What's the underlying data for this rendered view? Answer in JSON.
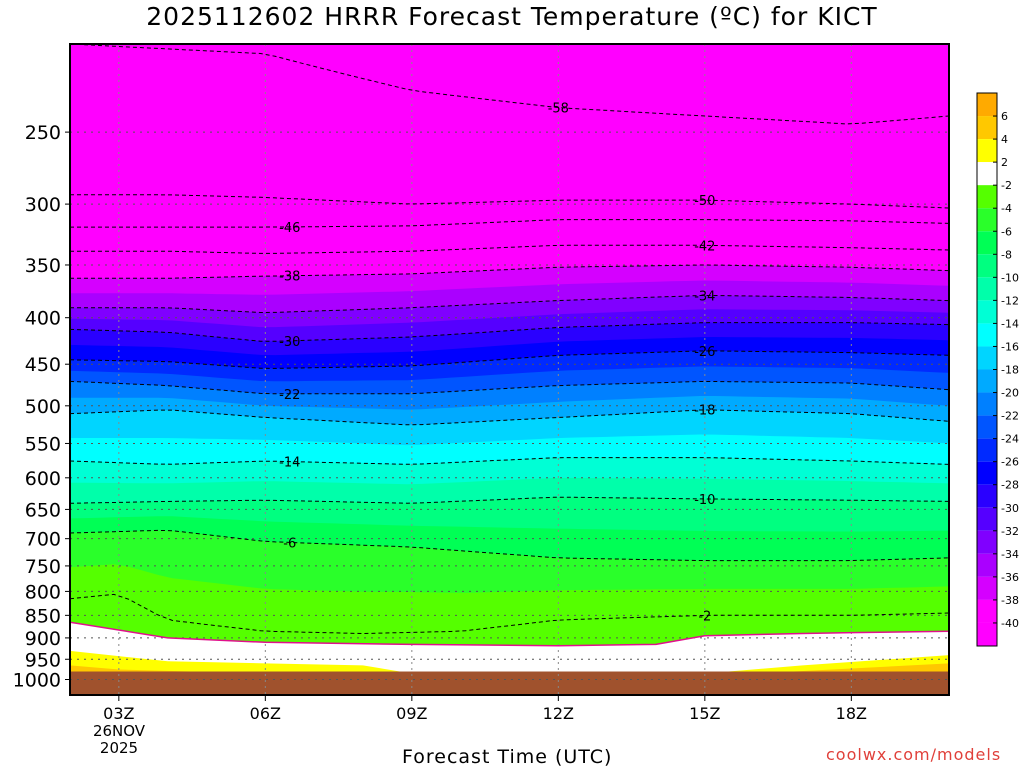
{
  "title": "2025112602 HRRR Forecast Temperature (ºC) for KICT",
  "x_axis_title": "Forecast Time (UTC)",
  "credit": "coolwx.com/models",
  "date_label": [
    "26NOV",
    "2025"
  ],
  "colors": {
    "ground": "#a0522d",
    "freezing_line": "#e0108c",
    "background_top": "#ff00ff",
    "credit": "#e0403a"
  },
  "chart_data": {
    "type": "heatmap",
    "title": "2025112602 HRRR Forecast Temperature (ºC) for KICT",
    "xlabel": "Forecast Time (UTC)",
    "ylabel": "",
    "x_hours": [
      3,
      6,
      9,
      12,
      15,
      18
    ],
    "x_tick_labels": [
      "03Z",
      "06Z",
      "09Z",
      "12Z",
      "15Z",
      "18Z"
    ],
    "x_range_hours": [
      2,
      20
    ],
    "y_tick_labels": [
      "250",
      "300",
      "350",
      "400",
      "450",
      "500",
      "550",
      "600",
      "650",
      "700",
      "750",
      "800",
      "850",
      "900",
      "950",
      "1000"
    ],
    "y_unit": "hPa",
    "y_range": [
      200,
      1040
    ],
    "colorbar": {
      "labels": [
        "6",
        "4",
        "2",
        "-2",
        "-4",
        "-6",
        "-8",
        "-10",
        "-12",
        "-14",
        "-16",
        "-18",
        "-20",
        "-22",
        "-24",
        "-26",
        "-28",
        "-30",
        "-32",
        "-34",
        "-36",
        "-38",
        "-40"
      ],
      "bands": [
        {
          "value": 7,
          "color": "#ffaa00"
        },
        {
          "value": 5,
          "color": "#ffc800"
        },
        {
          "value": 3,
          "color": "#ffff00"
        },
        {
          "value": 0,
          "color": "#ffffff"
        },
        {
          "value": -3,
          "color": "#55ff00"
        },
        {
          "value": -5,
          "color": "#2aff2a"
        },
        {
          "value": -7,
          "color": "#00ff55"
        },
        {
          "value": -9,
          "color": "#00ff80"
        },
        {
          "value": -11,
          "color": "#00ffaa"
        },
        {
          "value": -13,
          "color": "#00ffd5"
        },
        {
          "value": -15,
          "color": "#00ffff"
        },
        {
          "value": -17,
          "color": "#00d5ff"
        },
        {
          "value": -19,
          "color": "#00aaff"
        },
        {
          "value": -21,
          "color": "#0080ff"
        },
        {
          "value": -23,
          "color": "#0055ff"
        },
        {
          "value": -25,
          "color": "#002aff"
        },
        {
          "value": -27,
          "color": "#0000ff"
        },
        {
          "value": -29,
          "color": "#2a00ff"
        },
        {
          "value": -31,
          "color": "#5500ff"
        },
        {
          "value": -33,
          "color": "#8000ff"
        },
        {
          "value": -35,
          "color": "#aa00ff"
        },
        {
          "value": -37,
          "color": "#d500ff"
        },
        {
          "value": -39,
          "color": "#ff00ff"
        },
        {
          "value": -41,
          "color": "#ff00ff"
        }
      ]
    },
    "isotherms": [
      {
        "label": "-58",
        "t": -58,
        "pressure_by_hour": [
          [
            2,
            200
          ],
          [
            6,
            205
          ],
          [
            9,
            225
          ],
          [
            12,
            235
          ],
          [
            15,
            240
          ],
          [
            18,
            245
          ],
          [
            20,
            240
          ]
        ]
      },
      {
        "label": "-50",
        "t": -50,
        "pressure_by_hour": [
          [
            2,
            293
          ],
          [
            4,
            293
          ],
          [
            6,
            295
          ],
          [
            9,
            300
          ],
          [
            12,
            297
          ],
          [
            15,
            297
          ],
          [
            18,
            300
          ],
          [
            20,
            303
          ]
        ]
      },
      {
        "label": "-46",
        "t": -46,
        "pressure_by_hour": [
          [
            2,
            318
          ],
          [
            4,
            318
          ],
          [
            6,
            318
          ],
          [
            9,
            317
          ],
          [
            12,
            312
          ],
          [
            15,
            312
          ],
          [
            18,
            313
          ],
          [
            20,
            315
          ]
        ]
      },
      {
        "label": "-42",
        "t": -42,
        "pressure_by_hour": [
          [
            2,
            338
          ],
          [
            4,
            338
          ],
          [
            6,
            340
          ],
          [
            9,
            338
          ],
          [
            12,
            333
          ],
          [
            15,
            333
          ],
          [
            18,
            335
          ],
          [
            20,
            337
          ]
        ]
      },
      {
        "label": "-38",
        "t": -38,
        "pressure_by_hour": [
          [
            2,
            362
          ],
          [
            4,
            362
          ],
          [
            6,
            360
          ],
          [
            9,
            358
          ],
          [
            12,
            352
          ],
          [
            15,
            350
          ],
          [
            18,
            352
          ],
          [
            20,
            355
          ]
        ]
      },
      {
        "label": "-34",
        "t": -34,
        "pressure_by_hour": [
          [
            2,
            390
          ],
          [
            4,
            390
          ],
          [
            6,
            395
          ],
          [
            9,
            390
          ],
          [
            12,
            383
          ],
          [
            15,
            378
          ],
          [
            18,
            380
          ],
          [
            20,
            383
          ]
        ]
      },
      {
        "label": "-30",
        "t": -30,
        "pressure_by_hour": [
          [
            2,
            412
          ],
          [
            4,
            415
          ],
          [
            6,
            425
          ],
          [
            9,
            420
          ],
          [
            12,
            410
          ],
          [
            15,
            405
          ],
          [
            18,
            405
          ],
          [
            20,
            407
          ]
        ]
      },
      {
        "label": "-26",
        "t": -26,
        "pressure_by_hour": [
          [
            2,
            445
          ],
          [
            4,
            447
          ],
          [
            6,
            455
          ],
          [
            9,
            452
          ],
          [
            12,
            440
          ],
          [
            15,
            435
          ],
          [
            18,
            437
          ],
          [
            20,
            440
          ]
        ]
      },
      {
        "label": "-22",
        "t": -22,
        "pressure_by_hour": [
          [
            2,
            470
          ],
          [
            4,
            475
          ],
          [
            6,
            485
          ],
          [
            9,
            485
          ],
          [
            12,
            475
          ],
          [
            15,
            470
          ],
          [
            18,
            472
          ],
          [
            20,
            480
          ]
        ]
      },
      {
        "label": "-18",
        "t": -18,
        "pressure_by_hour": [
          [
            2,
            510
          ],
          [
            4,
            505
          ],
          [
            6,
            515
          ],
          [
            9,
            525
          ],
          [
            12,
            515
          ],
          [
            15,
            505
          ],
          [
            18,
            510
          ],
          [
            20,
            520
          ]
        ]
      },
      {
        "label": "-14",
        "t": -14,
        "pressure_by_hour": [
          [
            2,
            575
          ],
          [
            4,
            580
          ],
          [
            6,
            575
          ],
          [
            9,
            580
          ],
          [
            12,
            570
          ],
          [
            15,
            570
          ],
          [
            18,
            575
          ],
          [
            20,
            580
          ]
        ]
      },
      {
        "label": "-10",
        "t": -10,
        "pressure_by_hour": [
          [
            2,
            640
          ],
          [
            4,
            637
          ],
          [
            6,
            635
          ],
          [
            9,
            640
          ],
          [
            12,
            630
          ],
          [
            15,
            633
          ],
          [
            18,
            635
          ],
          [
            20,
            637
          ]
        ]
      },
      {
        "label": "-6",
        "t": -6,
        "pressure_by_hour": [
          [
            2,
            690
          ],
          [
            4,
            685
          ],
          [
            6,
            705
          ],
          [
            9,
            715
          ],
          [
            12,
            735
          ],
          [
            15,
            740
          ],
          [
            18,
            740
          ],
          [
            20,
            735
          ]
        ]
      },
      {
        "label": "-2",
        "t": -2,
        "pressure_by_hour": [
          [
            2,
            815
          ],
          [
            3,
            805
          ],
          [
            4,
            860
          ],
          [
            6,
            885
          ],
          [
            8,
            890
          ],
          [
            10,
            885
          ],
          [
            12,
            860
          ],
          [
            15,
            850
          ],
          [
            18,
            850
          ],
          [
            20,
            845
          ]
        ]
      }
    ],
    "freezing_line_0C": [
      [
        2,
        865
      ],
      [
        4,
        900
      ],
      [
        6,
        910
      ],
      [
        9,
        915
      ],
      [
        12,
        918
      ],
      [
        14,
        915
      ],
      [
        15,
        895
      ],
      [
        17,
        890
      ],
      [
        18,
        888
      ],
      [
        20,
        885
      ]
    ],
    "ground_pressure": 1000
  }
}
